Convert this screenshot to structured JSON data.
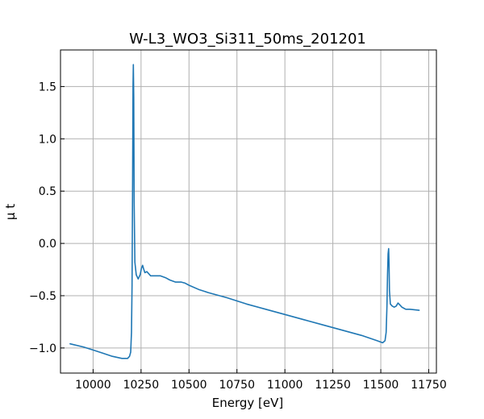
{
  "chart_data": {
    "type": "line",
    "title": "W-L3_WO3_Si311_50ms_201201",
    "xlabel": "Energy [eV]",
    "ylabel": "μ t",
    "xlim": [
      9830,
      11790
    ],
    "ylim": [
      -1.24,
      1.85
    ],
    "grid": true,
    "x_ticks": [
      10000,
      10250,
      10500,
      10750,
      11000,
      11250,
      11500,
      11750
    ],
    "x_tick_labels": [
      "10000",
      "10250",
      "10500",
      "10750",
      "11000",
      "11250",
      "11500",
      "11750"
    ],
    "y_ticks": [
      -1.0,
      -0.5,
      0.0,
      0.5,
      1.0,
      1.5
    ],
    "y_tick_labels": [
      "−1.0",
      "−0.5",
      "0.0",
      "0.5",
      "1.0",
      "1.5"
    ],
    "series": [
      {
        "color": "#1f77b4",
        "x": [
          9880,
          9950,
          10000,
          10050,
          10100,
          10150,
          10180,
          10190,
          10196,
          10200,
          10203,
          10206,
          10208,
          10210,
          10212,
          10214,
          10218,
          10225,
          10235,
          10245,
          10252,
          10258,
          10263,
          10270,
          10280,
          10290,
          10300,
          10320,
          10350,
          10380,
          10400,
          10430,
          10460,
          10480,
          10500,
          10550,
          10600,
          10700,
          10800,
          10900,
          11000,
          11100,
          11200,
          11300,
          11400,
          11480,
          11510,
          11522,
          11528,
          11532,
          11535,
          11538,
          11541,
          11543,
          11545,
          11550,
          11560,
          11570,
          11580,
          11590,
          11600,
          11610,
          11620,
          11630,
          11650,
          11700
        ],
        "y": [
          -0.96,
          -0.99,
          -1.02,
          -1.05,
          -1.08,
          -1.1,
          -1.1,
          -1.08,
          -1.04,
          -0.85,
          -0.4,
          0.6,
          1.5,
          1.71,
          1.4,
          0.4,
          -0.18,
          -0.3,
          -0.34,
          -0.3,
          -0.24,
          -0.21,
          -0.24,
          -0.28,
          -0.27,
          -0.29,
          -0.31,
          -0.31,
          -0.31,
          -0.33,
          -0.35,
          -0.37,
          -0.37,
          -0.38,
          -0.4,
          -0.44,
          -0.47,
          -0.52,
          -0.58,
          -0.63,
          -0.68,
          -0.73,
          -0.78,
          -0.83,
          -0.88,
          -0.93,
          -0.95,
          -0.93,
          -0.85,
          -0.6,
          -0.3,
          -0.1,
          -0.05,
          -0.2,
          -0.45,
          -0.58,
          -0.6,
          -0.61,
          -0.6,
          -0.57,
          -0.59,
          -0.61,
          -0.62,
          -0.63,
          -0.63,
          -0.64
        ]
      }
    ]
  }
}
